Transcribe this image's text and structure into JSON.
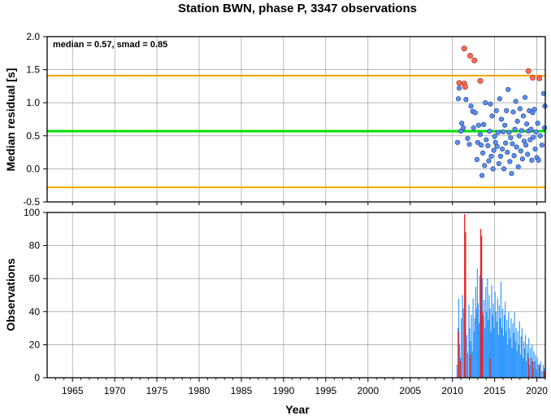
{
  "chart_data": [
    {
      "type": "scatter",
      "title": "Station BWN, phase P, 3347 observations",
      "ylabel": "Median residual [s]",
      "xlim": [
        1962,
        2021
      ],
      "ylim": [
        -0.5,
        2.0
      ],
      "yticks": [
        -0.5,
        0.0,
        0.5,
        1.0,
        1.5,
        2.0
      ],
      "ytick_labels": [
        "-0.5",
        "0.0",
        "0.5",
        "1.0",
        "1.5",
        "2.0"
      ],
      "grid": true,
      "annotation": "median = 0.57, smad = 0.85",
      "reference_lines": [
        {
          "name": "median",
          "y": 0.57,
          "color": "#00e000"
        },
        {
          "name": "upper",
          "y": 1.41,
          "color": "#ffa500"
        },
        {
          "name": "lower",
          "y": -0.28,
          "color": "#ffa500"
        }
      ],
      "outlier_color": "#ff6b55",
      "inlier_color": "#5b8fef",
      "outliers": [
        [
          2010.8,
          1.3
        ],
        [
          2011.4,
          1.29
        ],
        [
          2011.5,
          1.24
        ],
        [
          2011.4,
          1.82
        ],
        [
          2012.1,
          1.71
        ],
        [
          2012.6,
          1.64
        ],
        [
          2013.3,
          1.33
        ],
        [
          2019.0,
          1.48
        ],
        [
          2019.5,
          1.38
        ],
        [
          2020.3,
          1.37
        ]
      ],
      "inliers": [
        [
          2010.6,
          0.4
        ],
        [
          2010.7,
          1.06
        ],
        [
          2010.8,
          1.22
        ],
        [
          2011.0,
          0.57
        ],
        [
          2011.1,
          0.69
        ],
        [
          2011.3,
          0.62
        ],
        [
          2011.6,
          1.05
        ],
        [
          2011.8,
          0.46
        ],
        [
          2012.0,
          0.37
        ],
        [
          2012.2,
          0.95
        ],
        [
          2012.4,
          0.87
        ],
        [
          2012.5,
          0.62
        ],
        [
          2012.7,
          0.85
        ],
        [
          2012.9,
          0.14
        ],
        [
          2013.0,
          0.4
        ],
        [
          2013.1,
          0.66
        ],
        [
          2013.3,
          0.52
        ],
        [
          2013.4,
          0.36
        ],
        [
          2013.5,
          -0.1
        ],
        [
          2013.6,
          0.24
        ],
        [
          2013.7,
          0.67
        ],
        [
          2013.8,
          0.05
        ],
        [
          2013.9,
          1.0
        ],
        [
          2014.0,
          0.44
        ],
        [
          2014.2,
          0.35
        ],
        [
          2014.3,
          0.12
        ],
        [
          2014.4,
          0.57
        ],
        [
          2014.5,
          0.98
        ],
        [
          2014.6,
          0.19
        ],
        [
          2014.7,
          0.8
        ],
        [
          2014.8,
          0.0
        ],
        [
          2014.9,
          0.28
        ],
        [
          2015.0,
          0.49
        ],
        [
          2015.1,
          0.4
        ],
        [
          2015.2,
          0.88
        ],
        [
          2015.3,
          0.34
        ],
        [
          2015.4,
          0.55
        ],
        [
          2015.5,
          0.08
        ],
        [
          2015.6,
          1.06
        ],
        [
          2015.7,
          0.19
        ],
        [
          2015.8,
          0.75
        ],
        [
          2015.9,
          0.3
        ],
        [
          2016.0,
          0.56
        ],
        [
          2016.1,
          0.0
        ],
        [
          2016.2,
          0.66
        ],
        [
          2016.3,
          0.39
        ],
        [
          2016.4,
          0.88
        ],
        [
          2016.5,
          0.25
        ],
        [
          2016.6,
          1.2
        ],
        [
          2016.7,
          0.55
        ],
        [
          2016.8,
          0.11
        ],
        [
          2016.9,
          0.47
        ],
        [
          2017.0,
          -0.07
        ],
        [
          2017.1,
          0.38
        ],
        [
          2017.2,
          0.86
        ],
        [
          2017.3,
          0.2
        ],
        [
          2017.4,
          0.6
        ],
        [
          2017.5,
          1.02
        ],
        [
          2017.6,
          0.33
        ],
        [
          2017.7,
          0.72
        ],
        [
          2017.8,
          0.03
        ],
        [
          2017.9,
          0.5
        ],
        [
          2018.0,
          0.91
        ],
        [
          2018.1,
          0.27
        ],
        [
          2018.2,
          0.58
        ],
        [
          2018.3,
          0.15
        ],
        [
          2018.4,
          0.8
        ],
        [
          2018.5,
          0.42
        ],
        [
          2018.6,
          1.08
        ],
        [
          2018.7,
          0.36
        ],
        [
          2018.8,
          0.68
        ],
        [
          2018.9,
          0.22
        ],
        [
          2019.0,
          0.57
        ],
        [
          2019.1,
          0.88
        ],
        [
          2019.2,
          0.44
        ],
        [
          2019.3,
          0.6
        ],
        [
          2019.4,
          0.13
        ],
        [
          2019.5,
          0.85
        ],
        [
          2019.6,
          0.48
        ],
        [
          2019.7,
          0.9
        ],
        [
          2019.8,
          0.3
        ],
        [
          2019.9,
          0.56
        ],
        [
          2020.0,
          0.17
        ],
        [
          2020.1,
          0.69
        ],
        [
          2020.2,
          0.13
        ],
        [
          2020.4,
          0.5
        ],
        [
          2020.6,
          0.36
        ],
        [
          2020.8,
          1.14
        ],
        [
          2020.9,
          0.62
        ],
        [
          2020.95,
          0.95
        ]
      ]
    },
    {
      "type": "bar",
      "xlabel": "Year",
      "ylabel": "Observations",
      "xlim": [
        1962,
        2021
      ],
      "ylim": [
        0,
        100
      ],
      "yticks": [
        0,
        20,
        40,
        60,
        80,
        100
      ],
      "xticks": [
        1965,
        1970,
        1975,
        1980,
        1985,
        1990,
        1995,
        2000,
        2005,
        2010,
        2015,
        2020
      ],
      "grid": true,
      "colors": {
        "normal": "#3399ff",
        "flagged": "#ee2222"
      },
      "bars_normal": [
        [
          2010.55,
          8
        ],
        [
          2010.65,
          30
        ],
        [
          2010.75,
          48
        ],
        [
          2010.85,
          20
        ],
        [
          2010.95,
          12
        ],
        [
          2011.05,
          36
        ],
        [
          2011.2,
          50
        ],
        [
          2011.3,
          42
        ],
        [
          2011.45,
          34
        ],
        [
          2011.55,
          18
        ],
        [
          2011.7,
          26
        ],
        [
          2011.8,
          15
        ],
        [
          2011.95,
          44
        ],
        [
          2012.05,
          30
        ],
        [
          2012.15,
          22
        ],
        [
          2012.25,
          38
        ],
        [
          2012.35,
          16
        ],
        [
          2012.45,
          48
        ],
        [
          2012.55,
          28
        ],
        [
          2012.65,
          36
        ],
        [
          2012.75,
          55
        ],
        [
          2012.85,
          42
        ],
        [
          2012.95,
          66
        ],
        [
          2013.05,
          45
        ],
        [
          2013.15,
          33
        ],
        [
          2013.25,
          62
        ],
        [
          2013.35,
          28
        ],
        [
          2013.45,
          50
        ],
        [
          2013.55,
          60
        ],
        [
          2013.65,
          38
        ],
        [
          2013.75,
          47
        ],
        [
          2013.85,
          30
        ],
        [
          2013.95,
          55
        ],
        [
          2014.05,
          40
        ],
        [
          2014.15,
          60
        ],
        [
          2014.25,
          35
        ],
        [
          2014.35,
          50
        ],
        [
          2014.45,
          42
        ],
        [
          2014.55,
          28
        ],
        [
          2014.65,
          56
        ],
        [
          2014.75,
          38
        ],
        [
          2014.85,
          45
        ],
        [
          2014.95,
          30
        ],
        [
          2015.05,
          52
        ],
        [
          2015.15,
          40
        ],
        [
          2015.25,
          34
        ],
        [
          2015.35,
          48
        ],
        [
          2015.45,
          26
        ],
        [
          2015.55,
          44
        ],
        [
          2015.65,
          36
        ],
        [
          2015.75,
          58
        ],
        [
          2015.85,
          30
        ],
        [
          2015.95,
          42
        ],
        [
          2016.05,
          25
        ],
        [
          2016.15,
          38
        ],
        [
          2016.25,
          46
        ],
        [
          2016.35,
          28
        ],
        [
          2016.45,
          35
        ],
        [
          2016.55,
          20
        ],
        [
          2016.65,
          40
        ],
        [
          2016.75,
          30
        ],
        [
          2016.85,
          24
        ],
        [
          2016.95,
          36
        ],
        [
          2017.05,
          18
        ],
        [
          2017.15,
          33
        ],
        [
          2017.25,
          27
        ],
        [
          2017.35,
          40
        ],
        [
          2017.45,
          22
        ],
        [
          2017.55,
          30
        ],
        [
          2017.65,
          16
        ],
        [
          2017.75,
          28
        ],
        [
          2017.85,
          20
        ],
        [
          2017.95,
          34
        ],
        [
          2018.05,
          14
        ],
        [
          2018.15,
          25
        ],
        [
          2018.25,
          30
        ],
        [
          2018.35,
          12
        ],
        [
          2018.45,
          22
        ],
        [
          2018.55,
          18
        ],
        [
          2018.65,
          26
        ],
        [
          2018.75,
          10
        ],
        [
          2018.85,
          20
        ],
        [
          2018.95,
          15
        ],
        [
          2019.05,
          24
        ],
        [
          2019.15,
          8
        ],
        [
          2019.25,
          18
        ],
        [
          2019.35,
          12
        ],
        [
          2019.45,
          20
        ],
        [
          2019.55,
          6
        ],
        [
          2019.65,
          16
        ],
        [
          2019.75,
          10
        ],
        [
          2019.85,
          14
        ],
        [
          2019.95,
          5
        ],
        [
          2020.05,
          12
        ],
        [
          2020.15,
          8
        ],
        [
          2020.3,
          6
        ],
        [
          2020.45,
          10
        ],
        [
          2020.6,
          4
        ],
        [
          2020.75,
          8
        ],
        [
          2020.9,
          6
        ]
      ],
      "bars_flagged": [
        [
          2010.75,
          28
        ],
        [
          2010.95,
          10
        ],
        [
          2011.45,
          99
        ],
        [
          2011.55,
          88
        ],
        [
          2012.15,
          14
        ],
        [
          2013.35,
          90
        ],
        [
          2013.45,
          86
        ],
        [
          2013.55,
          40
        ],
        [
          2014.45,
          12
        ],
        [
          2019.05,
          12
        ],
        [
          2019.5,
          10
        ],
        [
          2020.3,
          8
        ],
        [
          2020.85,
          4
        ]
      ]
    }
  ]
}
